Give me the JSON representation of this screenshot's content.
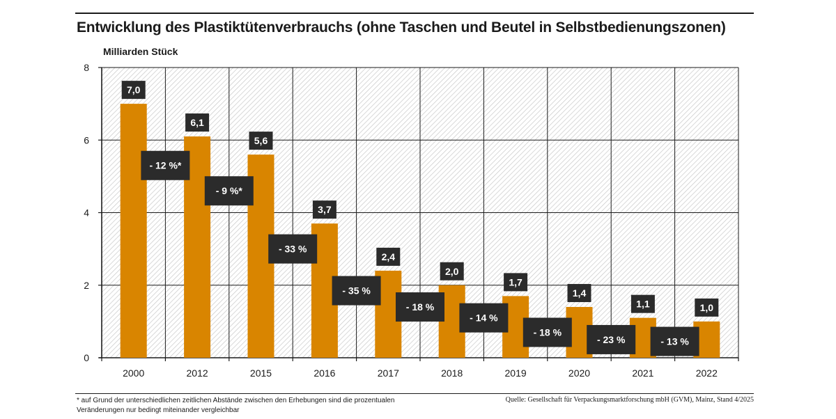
{
  "title": "Entwicklung des Plastiktütenverbrauchs (ohne Taschen und Beutel in Selbstbedienungszonen)",
  "footnote": "* auf Grund der unterschiedlichen zeitlichen Abstände zwischen den Erhebungen sind die prozentualen Veränderungen nur bedingt miteinander vergleichbar",
  "source": "Quelle: Gesellschaft für Verpackungsmarktforschung mbH (GVM), Mainz, Stand 4/2025",
  "colors": {
    "bar": "#d98500",
    "label_bg": "#2b2b2b",
    "label_text": "#ffffff",
    "grid": "#1a1a1a"
  },
  "chart_data": {
    "type": "bar",
    "title": "Entwicklung des Plastiktütenverbrauchs (ohne Taschen und Beutel in Selbstbedienungszonen)",
    "ylabel": "Milliarden Stück",
    "xlabel": "",
    "ylim": [
      0,
      8
    ],
    "yticks": [
      0,
      2,
      4,
      6,
      8
    ],
    "grid": true,
    "categories": [
      "2000",
      "2012",
      "2015",
      "2016",
      "2017",
      "2018",
      "2019",
      "2020",
      "2021",
      "2022"
    ],
    "values": [
      7.0,
      6.1,
      5.6,
      3.7,
      2.4,
      2.0,
      1.7,
      1.4,
      1.1,
      1.0
    ],
    "value_labels": [
      "7,0",
      "6,1",
      "5,6",
      "3,7",
      "2,4",
      "2,0",
      "1,7",
      "1,4",
      "1,1",
      "1,0"
    ],
    "changes": [
      {
        "label": "- 12 %*",
        "level": 5.3
      },
      {
        "label": "- 9 %*",
        "level": 4.6
      },
      {
        "label": "- 33 %",
        "level": 3.0
      },
      {
        "label": "- 35 %",
        "level": 1.85
      },
      {
        "label": "- 18 %",
        "level": 1.4
      },
      {
        "label": "- 14 %",
        "level": 1.1
      },
      {
        "label": "- 18 %",
        "level": 0.7
      },
      {
        "label": "- 23 %",
        "level": 0.5
      },
      {
        "label": "- 13 %",
        "level": 0.45
      }
    ]
  }
}
